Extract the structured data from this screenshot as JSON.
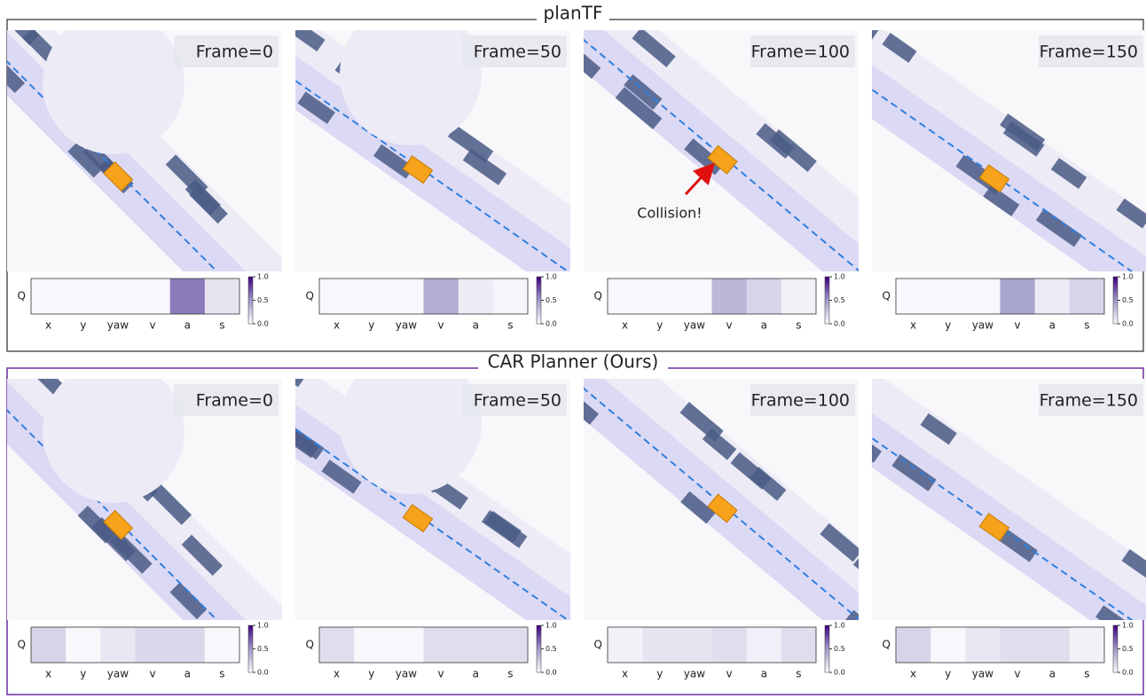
{
  "groups": [
    {
      "title": "planTF",
      "annotation": "Collision!",
      "panels": [
        {
          "frame": "Frame=0",
          "values": [
            0.02,
            0.02,
            0.02,
            0.02,
            0.6,
            0.12
          ]
        },
        {
          "frame": "Frame=50",
          "values": [
            0.02,
            0.02,
            0.02,
            0.4,
            0.08,
            0.03
          ]
        },
        {
          "frame": "Frame=100",
          "values": [
            0.02,
            0.02,
            0.02,
            0.35,
            0.2,
            0.05
          ]
        },
        {
          "frame": "Frame=150",
          "values": [
            0.02,
            0.02,
            0.02,
            0.45,
            0.08,
            0.2
          ]
        }
      ]
    },
    {
      "title": "CAR Planner (Ours)",
      "panels": [
        {
          "frame": "Frame=0",
          "values": [
            0.2,
            0.02,
            0.1,
            0.18,
            0.18,
            0.02
          ]
        },
        {
          "frame": "Frame=50",
          "values": [
            0.15,
            0.02,
            0.02,
            0.15,
            0.15,
            0.15
          ]
        },
        {
          "frame": "Frame=100",
          "values": [
            0.05,
            0.12,
            0.12,
            0.15,
            0.06,
            0.15
          ]
        },
        {
          "frame": "Frame=150",
          "values": [
            0.2,
            0.02,
            0.1,
            0.15,
            0.15,
            0.05
          ]
        }
      ]
    }
  ],
  "heatmap": {
    "row_label": "Q",
    "columns": [
      "x",
      "y",
      "yaw",
      "v",
      "a",
      "s"
    ],
    "colorbar_lim": [
      0,
      1
    ],
    "colorbar_ticks": [
      {
        "value": 0,
        "label": "0.0"
      },
      {
        "value": 0.5,
        "label": "0.5"
      },
      {
        "value": 1,
        "label": "1.0"
      }
    ]
  }
}
